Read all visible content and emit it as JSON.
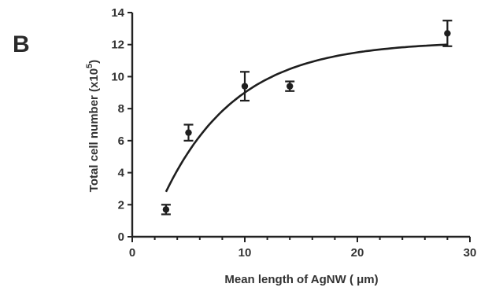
{
  "panel_label": "B",
  "chart_data": {
    "type": "scatter",
    "title": "",
    "xlabel": "Mean length of AgNW ( μm)",
    "ylabel_main": "Total cell number (x10",
    "ylabel_exp": "5",
    "ylabel_close": ")",
    "xlim": [
      0,
      30
    ],
    "ylim": [
      0,
      14
    ],
    "x_ticks": [
      0,
      10,
      20,
      30
    ],
    "y_ticks": [
      0,
      2,
      4,
      6,
      8,
      10,
      12,
      14
    ],
    "x_minor_step": 2,
    "grid": false,
    "legend": "none",
    "points": [
      {
        "x": 3,
        "y": 1.7,
        "err": 0.3
      },
      {
        "x": 5,
        "y": 6.5,
        "err": 0.5
      },
      {
        "x": 10,
        "y": 9.4,
        "err": 0.9
      },
      {
        "x": 14,
        "y": 9.4,
        "err": 0.3
      },
      {
        "x": 28,
        "y": 12.7,
        "err": 0.8
      }
    ],
    "fit_curve": {
      "model": "exponential rise to plateau",
      "plateau": 12.2,
      "rate": 0.154,
      "x_start_value": 3,
      "x_end_value": 28
    },
    "colors": {
      "ink": "#1e1e1e",
      "text": "#333333"
    }
  }
}
